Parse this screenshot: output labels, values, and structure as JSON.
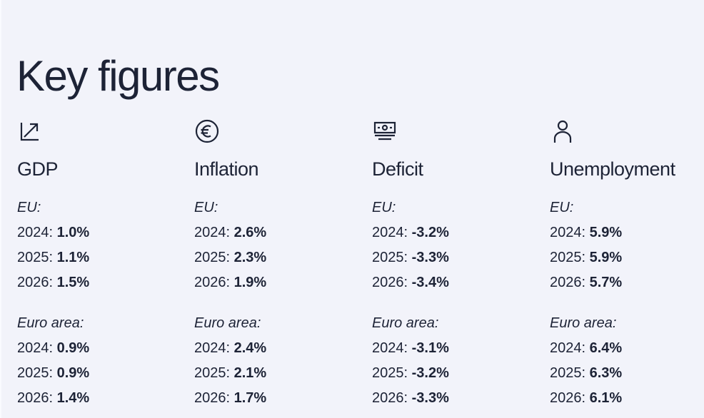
{
  "title": "Key figures",
  "columns": [
    {
      "icon": "trend-arrow-icon",
      "label": "GDP",
      "eu": {
        "header": "EU:",
        "rows": [
          {
            "year": "2024:",
            "value": "1.0%"
          },
          {
            "year": "2025:",
            "value": "1.1%"
          },
          {
            "year": "2026:",
            "value": "1.5%"
          }
        ]
      },
      "ea": {
        "header": "Euro area:",
        "rows": [
          {
            "year": "2024:",
            "value": "0.9%"
          },
          {
            "year": "2025:",
            "value": "0.9%"
          },
          {
            "year": "2026:",
            "value": "1.4%"
          }
        ]
      }
    },
    {
      "icon": "euro-icon",
      "label": "Inflation",
      "eu": {
        "header": "EU:",
        "rows": [
          {
            "year": "2024:",
            "value": "2.6%"
          },
          {
            "year": "2025:",
            "value": "2.3%"
          },
          {
            "year": "2026:",
            "value": "1.9%"
          }
        ]
      },
      "ea": {
        "header": "Euro area:",
        "rows": [
          {
            "year": "2024:",
            "value": "2.4%"
          },
          {
            "year": "2025:",
            "value": "2.1%"
          },
          {
            "year": "2026:",
            "value": "1.7%"
          }
        ]
      }
    },
    {
      "icon": "banknote-stack-icon",
      "label": "Deficit",
      "eu": {
        "header": "EU:",
        "rows": [
          {
            "year": "2024:",
            "value": "-3.2%"
          },
          {
            "year": "2025:",
            "value": "-3.3%"
          },
          {
            "year": "2026:",
            "value": "-3.4%"
          }
        ]
      },
      "ea": {
        "header": "Euro area:",
        "rows": [
          {
            "year": "2024:",
            "value": "-3.1%"
          },
          {
            "year": "2025:",
            "value": "-3.2%"
          },
          {
            "year": "2026:",
            "value": "-3.3%"
          }
        ]
      }
    },
    {
      "icon": "person-icon",
      "label": "Unemployment",
      "eu": {
        "header": "EU:",
        "rows": [
          {
            "year": "2024:",
            "value": "5.9%"
          },
          {
            "year": "2025:",
            "value": "5.9%"
          },
          {
            "year": "2026:",
            "value": "5.7%"
          }
        ]
      },
      "ea": {
        "header": "Euro area:",
        "rows": [
          {
            "year": "2024:",
            "value": "6.4%"
          },
          {
            "year": "2025:",
            "value": "6.3%"
          },
          {
            "year": "2026:",
            "value": "6.1%"
          }
        ]
      }
    }
  ]
}
